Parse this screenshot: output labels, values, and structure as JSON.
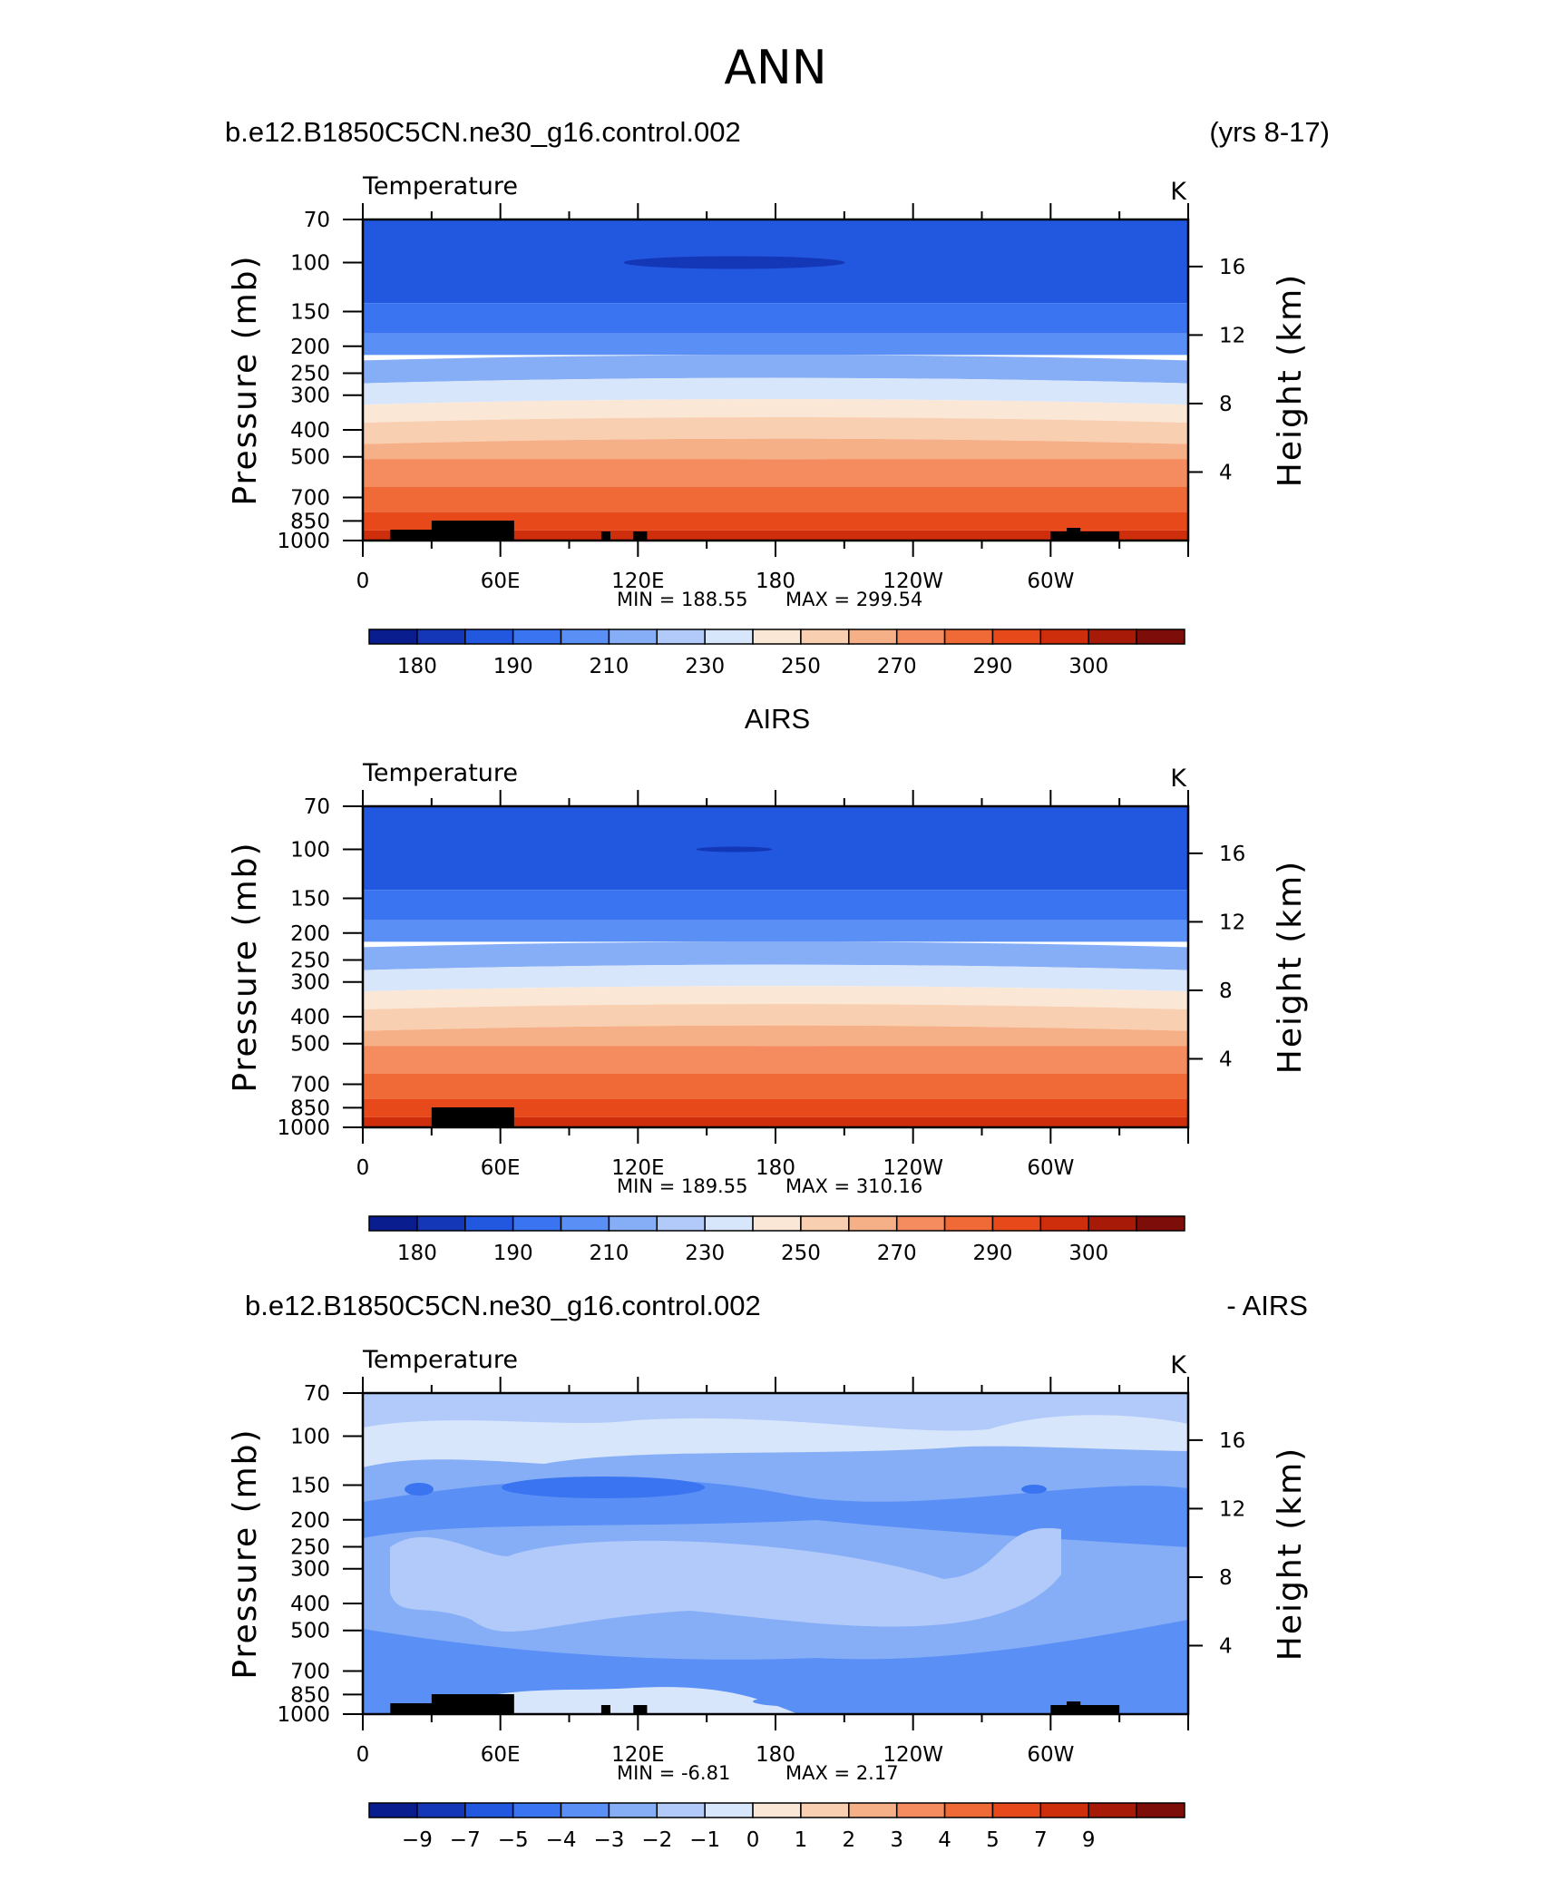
{
  "page_title": "ANN",
  "chart_data": [
    {
      "type": "heatmap",
      "title_left": "b.e12.B1850C5CN.ne30_g16.control.002",
      "title_right": "(yrs 8-17)",
      "variable": "Temperature",
      "units": "K",
      "ylabel_left": "Pressure (mb)",
      "ylabel_right": "Height (km)",
      "x_ticks": [
        "0",
        "60E",
        "120E",
        "180",
        "120W",
        "60W"
      ],
      "y_ticks_pressure": [
        "70",
        "100",
        "150",
        "200",
        "250",
        "300",
        "400",
        "500",
        "700",
        "850",
        "1000"
      ],
      "y_ticks_height": [
        "16",
        "12",
        "8",
        "4"
      ],
      "min_label": "MIN =  188.55",
      "max_label": "MAX =  299.54",
      "min": 188.55,
      "max": 299.54,
      "colorbar_labels": [
        "180",
        "190",
        "210",
        "230",
        "250",
        "270",
        "290",
        "300"
      ],
      "colorbar_colors": [
        "#0a1d8e",
        "#1437b8",
        "#2257e0",
        "#3a74f0",
        "#5a8ff5",
        "#86aef7",
        "#b1cafa",
        "#d8e6fc",
        "#fbe7d6",
        "#f9cfb1",
        "#f6b088",
        "#f48c5f",
        "#f06a38",
        "#e8491a",
        "#cf2e0c",
        "#a81a08",
        "#7d0d08"
      ]
    },
    {
      "type": "heatmap",
      "title_center": "AIRS",
      "variable": "Temperature",
      "units": "K",
      "ylabel_left": "Pressure (mb)",
      "ylabel_right": "Height (km)",
      "x_ticks": [
        "0",
        "60E",
        "120E",
        "180",
        "120W",
        "60W"
      ],
      "y_ticks_pressure": [
        "70",
        "100",
        "150",
        "200",
        "250",
        "300",
        "400",
        "500",
        "700",
        "850",
        "1000"
      ],
      "y_ticks_height": [
        "16",
        "12",
        "8",
        "4"
      ],
      "min_label": "MIN =  189.55",
      "max_label": "MAX =  310.16",
      "min": 189.55,
      "max": 310.16,
      "colorbar_labels": [
        "180",
        "190",
        "210",
        "230",
        "250",
        "270",
        "290",
        "300"
      ],
      "colorbar_colors": [
        "#0a1d8e",
        "#1437b8",
        "#2257e0",
        "#3a74f0",
        "#5a8ff5",
        "#86aef7",
        "#b1cafa",
        "#d8e6fc",
        "#fbe7d6",
        "#f9cfb1",
        "#f6b088",
        "#f48c5f",
        "#f06a38",
        "#e8491a",
        "#cf2e0c",
        "#a81a08",
        "#7d0d08"
      ]
    },
    {
      "type": "heatmap",
      "title_left": "b.e12.B1850C5CN.ne30_g16.control.002",
      "title_right": "- AIRS",
      "variable": "Temperature",
      "units": "K",
      "ylabel_left": "Pressure (mb)",
      "ylabel_right": "Height (km)",
      "x_ticks": [
        "0",
        "60E",
        "120E",
        "180",
        "120W",
        "60W"
      ],
      "y_ticks_pressure": [
        "70",
        "100",
        "150",
        "200",
        "250",
        "300",
        "400",
        "500",
        "700",
        "850",
        "1000"
      ],
      "y_ticks_height": [
        "16",
        "12",
        "8",
        "4"
      ],
      "min_label": "MIN =    -6.81",
      "max_label": "MAX =      2.17",
      "min": -6.81,
      "max": 2.17,
      "colorbar_labels": [
        "-9",
        "-7",
        "-5",
        "-4",
        "-3",
        "-2",
        "-1",
        "0",
        "1",
        "2",
        "3",
        "4",
        "5",
        "7",
        "9"
      ],
      "colorbar_colors": [
        "#0a1d8e",
        "#1437b8",
        "#2257e0",
        "#3a74f0",
        "#5a8ff5",
        "#86aef7",
        "#b1cafa",
        "#d8e6fc",
        "#fbe7d6",
        "#f9cfb1",
        "#f6b088",
        "#f48c5f",
        "#f06a38",
        "#e8491a",
        "#cf2e0c",
        "#a81a08",
        "#7d0d08"
      ]
    }
  ]
}
